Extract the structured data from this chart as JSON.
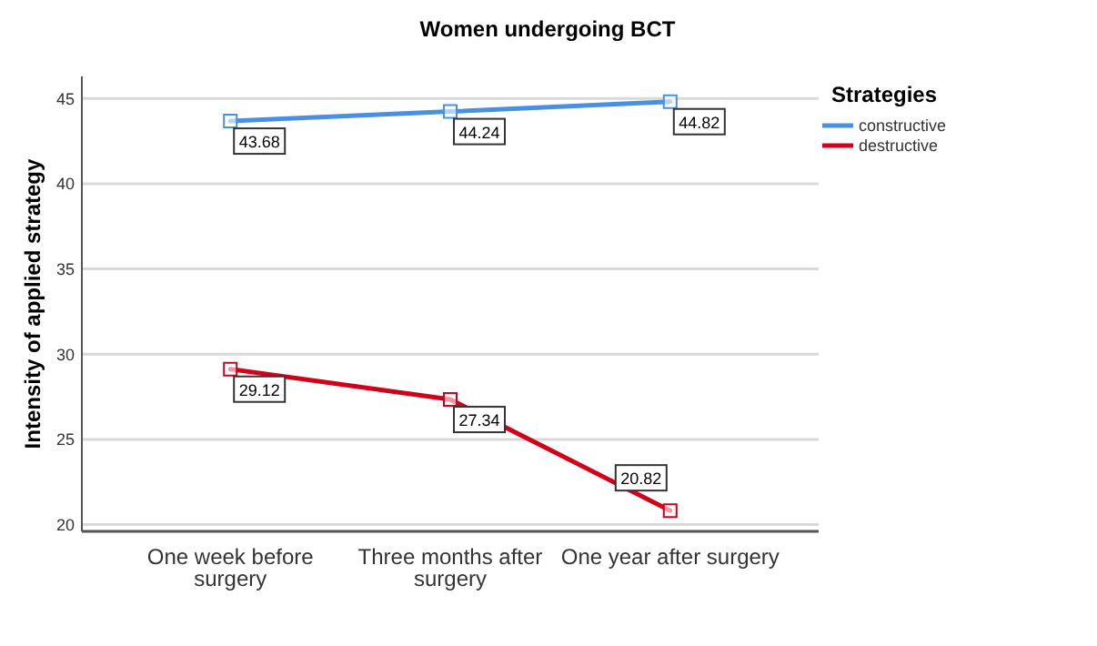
{
  "chart_data": {
    "type": "line",
    "title": "Women undergoing BCT",
    "ylabel": "Intensity of applied strategy",
    "legend_title": "Strategies",
    "categories": [
      "One week before surgery",
      "Three months after surgery",
      "One year after surgery"
    ],
    "series": [
      {
        "name": "constructive",
        "color": "#4a90e2",
        "values": [
          43.68,
          44.24,
          44.82
        ]
      },
      {
        "name": "destructive",
        "color": "#d0021b",
        "values": [
          29.12,
          27.34,
          20.82
        ]
      }
    ],
    "ylim": [
      19.6,
      46.3
    ],
    "yticks": [
      20,
      25,
      30,
      35,
      40,
      45
    ],
    "grid": "y",
    "legend": "right",
    "marker": "square",
    "line_style": "solid",
    "data_labels": true
  }
}
